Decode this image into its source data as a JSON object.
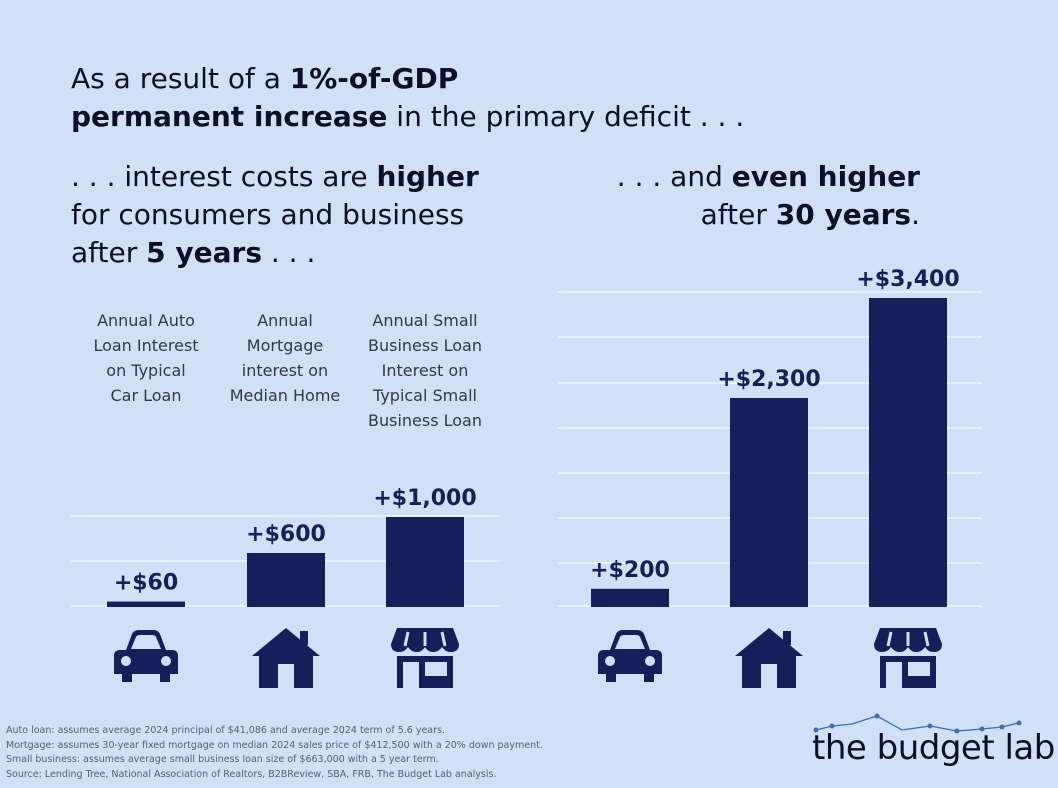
{
  "headline": {
    "part1": "As a result of a ",
    "bold1": "1%-of-GDP",
    "bold2": "permanent increase",
    "part2": " in the primary deficit . . ."
  },
  "left_heading": {
    "part1": ". . . interest costs are ",
    "bold1": "higher",
    "line2": "for consumers and business",
    "part3": "after ",
    "bold2": "5 years",
    "part4": " . . ."
  },
  "right_heading": {
    "part1": ". . . and ",
    "bold1": "even higher",
    "part2": "after ",
    "bold2": "30 years",
    "part3": "."
  },
  "category_labels": [
    "Annual Auto\nLoan Interest\non Typical\nCar Loan",
    "Annual\nMortgage\ninterest on\nMedian Home",
    "Annual Small\nBusiness Loan\nInterest on\nTypical Small\nBusiness Loan"
  ],
  "chart_data": [
    {
      "type": "bar",
      "categories": [
        "Annual Auto Loan Interest on Typical Car Loan",
        "Annual Mortgage interest on Median Home",
        "Annual Small Business Loan Interest on Typical Small Business Loan"
      ],
      "values": [
        60,
        600,
        1000
      ],
      "data_labels": [
        "+$60",
        "+$600",
        "+$1,000"
      ],
      "icons": [
        "car-icon",
        "house-icon",
        "storefront-icon"
      ],
      "ylim": [
        0,
        1000
      ],
      "grid": true
    },
    {
      "type": "bar",
      "categories": [
        "Annual Auto Loan Interest on Typical Car Loan",
        "Annual Mortgage interest on Median Home",
        "Annual Small Business Loan Interest on Typical Small Business Loan"
      ],
      "values": [
        200,
        2300,
        3400
      ],
      "data_labels": [
        "+$200",
        "+$2,300",
        "+$3,400"
      ],
      "icons": [
        "car-icon",
        "house-icon",
        "storefront-icon"
      ],
      "ylim": [
        0,
        3500
      ],
      "grid": true
    }
  ],
  "footnotes": [
    "Auto loan: assumes average 2024 principal of $41,086 and average 2024 term of 5.6 years.",
    "Mortgage: assumes 30-year fixed mortgage on median 2024 sales price of $412,500 with a 20% down payment.",
    "Small business: assumes average small business loan size of $663,000 with a 5 year term.",
    "Source: Lending Tree, National Association of Realtors, B2BReview, SBA, FRB, The Budget Lab analysis."
  ],
  "logo": "the budget lab",
  "colors": {
    "background": "#cfe0f7",
    "bar": "#15205a",
    "grid": "#ffffff"
  }
}
